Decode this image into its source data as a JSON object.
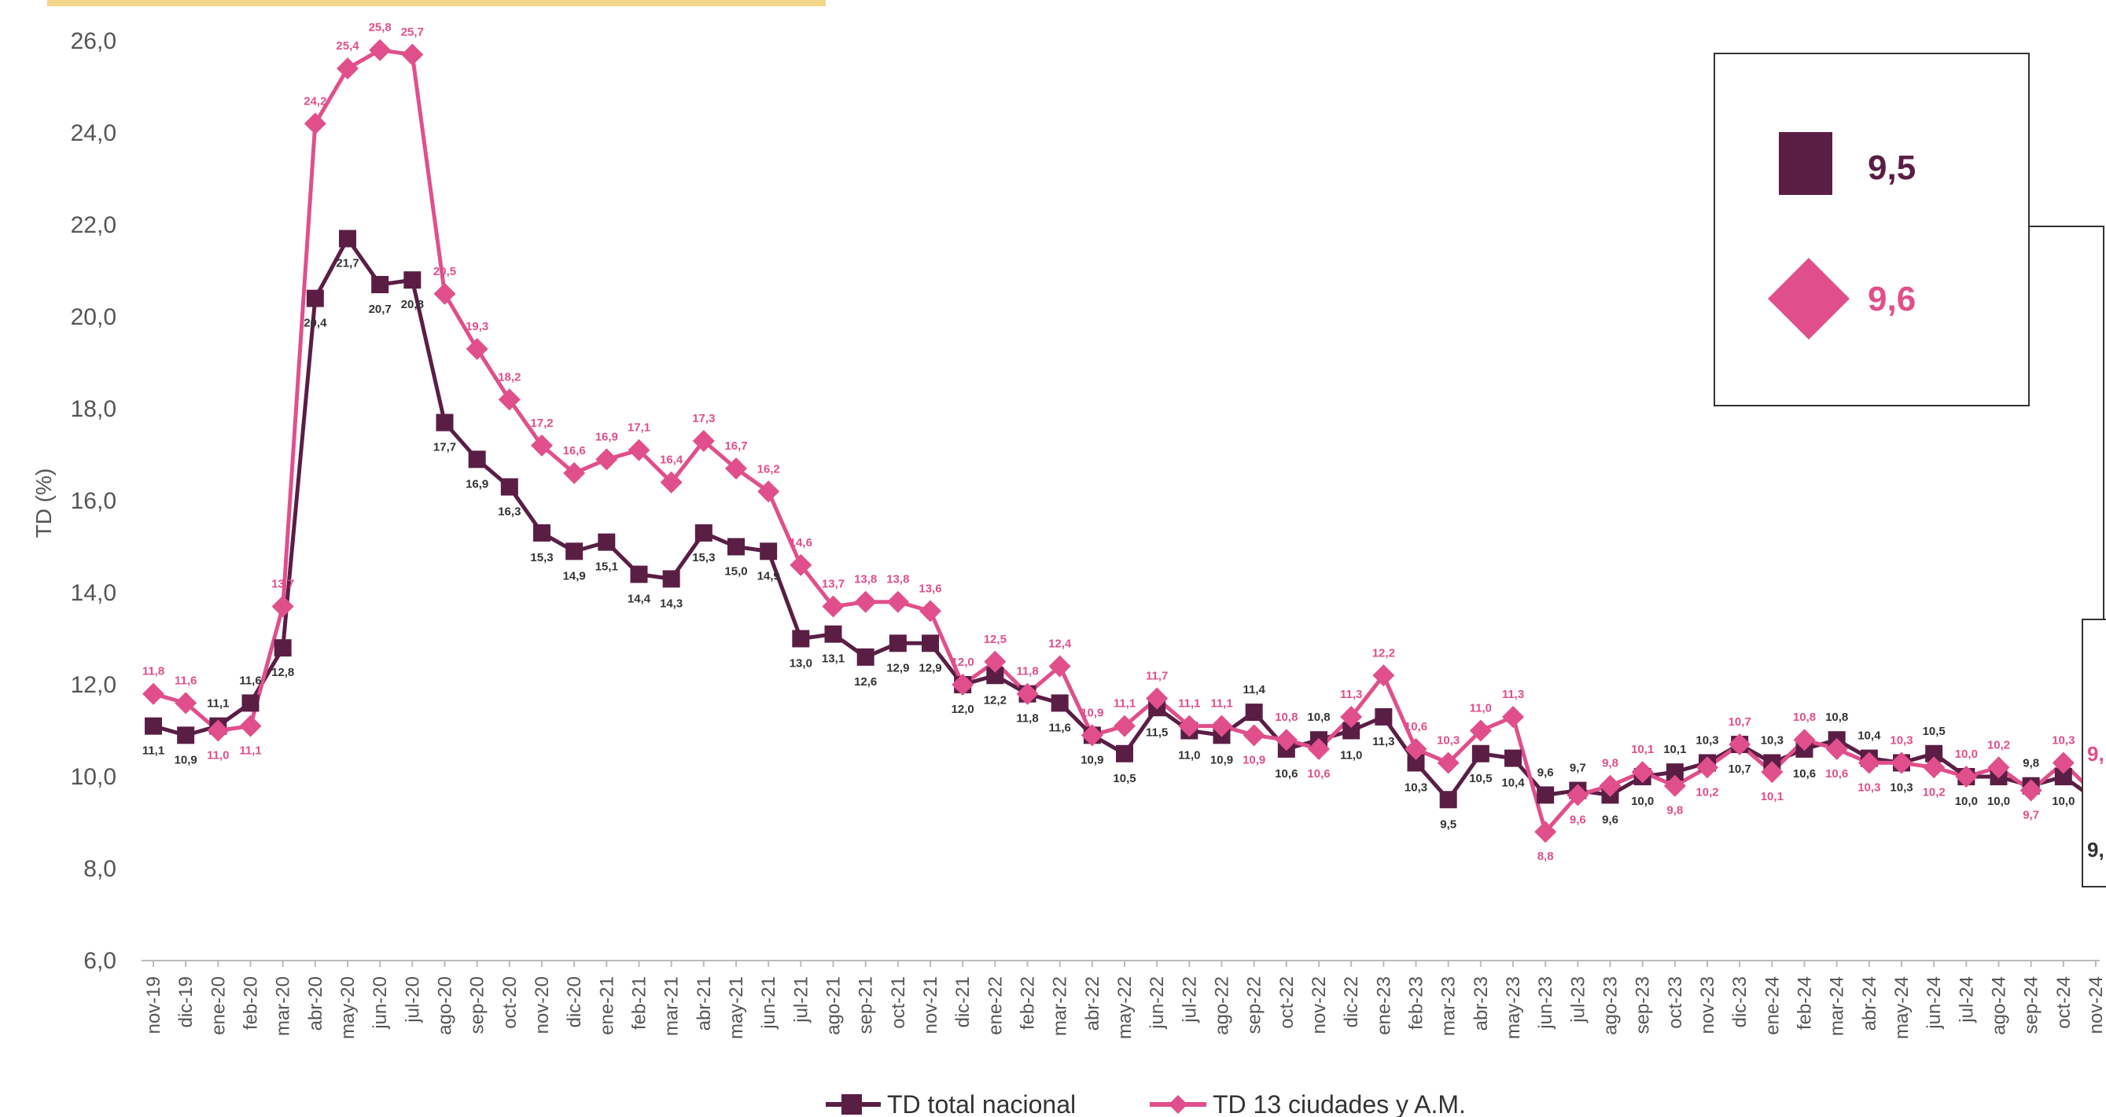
{
  "chart_data": {
    "type": "line",
    "title": "",
    "xlabel": "",
    "ylabel": "TD (%)",
    "ylim": [
      6.0,
      26.0
    ],
    "yticks": [
      "6,0",
      "8,0",
      "10,0",
      "12,0",
      "14,0",
      "16,0",
      "18,0",
      "20,0",
      "22,0",
      "24,0",
      "26,0"
    ],
    "grid": false,
    "legend_position": "bottom",
    "categories": [
      "nov-19",
      "dic-19",
      "ene-20",
      "feb-20",
      "mar-20",
      "abr-20",
      "may-20",
      "jun-20",
      "jul-20",
      "ago-20",
      "sep-20",
      "oct-20",
      "nov-20",
      "dic-20",
      "ene-21",
      "feb-21",
      "mar-21",
      "abr-21",
      "may-21",
      "jun-21",
      "jul-21",
      "ago-21",
      "sep-21",
      "oct-21",
      "nov-21",
      "dic-21",
      "ene-22",
      "feb-22",
      "mar-22",
      "abr-22",
      "may-22",
      "jun-22",
      "jul-22",
      "ago-22",
      "sep-22",
      "oct-22",
      "nov-22",
      "dic-22",
      "ene-23",
      "feb-23",
      "mar-23",
      "abr-23",
      "may-23",
      "jun-23",
      "jul-23",
      "ago-23",
      "sep-23",
      "oct-23",
      "nov-23",
      "dic-23",
      "ene-24",
      "feb-24",
      "mar-24",
      "abr-24",
      "may-24",
      "jun-24",
      "jul-24",
      "ago-24",
      "sep-24",
      "oct-24",
      "nov-24"
    ],
    "series": [
      {
        "name": "TD total nacional",
        "color": "#5a1e45",
        "marker": "square",
        "values": [
          11.1,
          10.9,
          11.1,
          11.6,
          12.8,
          20.4,
          21.7,
          20.7,
          20.8,
          17.7,
          16.9,
          16.3,
          15.3,
          14.9,
          15.1,
          14.4,
          14.3,
          15.3,
          15.0,
          14.9,
          13.0,
          13.1,
          12.6,
          12.9,
          12.9,
          12.0,
          12.2,
          11.8,
          11.6,
          10.9,
          10.5,
          11.5,
          11.0,
          10.9,
          11.4,
          10.6,
          10.8,
          11.0,
          11.3,
          10.3,
          9.5,
          10.5,
          10.4,
          9.6,
          9.7,
          9.6,
          10.0,
          10.1,
          10.3,
          10.7,
          10.3,
          10.6,
          10.8,
          10.4,
          10.3,
          10.5,
          10.0,
          10.0,
          9.8,
          10.0,
          9.5
        ],
        "labels": [
          "11,1",
          "10,9",
          "11,1",
          "11,6",
          "12,8",
          "20,4",
          "21,7",
          "20,7",
          "20,8",
          "17,7",
          "16,9",
          "16,3",
          "15,3",
          "14,9",
          "15,1",
          "14,4",
          "14,3",
          "15,3",
          "15,0",
          "14,9",
          "13,0",
          "13,1",
          "12,6",
          "12,9",
          "12,9",
          "12,0",
          "12,2",
          "11,8",
          "11,6",
          "10,9",
          "10,5",
          "11,5",
          "11,0",
          "10,9",
          "11,4",
          "10,6",
          "10,8",
          "11,0",
          "11,3",
          "10,3",
          "9,5",
          "10,5",
          "10,4",
          "9,6",
          "9,7",
          "9,6",
          "10,0",
          "10,1",
          "10,3",
          "10,7",
          "10,3",
          "10,6",
          "10,8",
          "10,4",
          "10,3",
          "10,5",
          "10,0",
          "10,0",
          "9,8",
          "10,0",
          "9,5"
        ]
      },
      {
        "name": "TD 13 ciudades y A.M.",
        "color": "#e04f8c",
        "marker": "diamond",
        "values": [
          11.8,
          11.6,
          11.0,
          11.1,
          13.7,
          24.2,
          25.4,
          25.8,
          25.7,
          20.5,
          19.3,
          18.2,
          17.2,
          16.6,
          16.9,
          17.1,
          16.4,
          17.3,
          16.7,
          16.2,
          14.6,
          13.7,
          13.8,
          13.8,
          13.6,
          12.0,
          12.5,
          11.8,
          12.4,
          10.9,
          11.1,
          11.7,
          11.1,
          11.1,
          10.9,
          10.8,
          10.6,
          11.3,
          12.2,
          10.6,
          10.3,
          11.0,
          11.3,
          8.8,
          9.6,
          9.8,
          10.1,
          9.8,
          10.2,
          10.7,
          10.1,
          10.8,
          10.6,
          10.3,
          10.3,
          10.2,
          10.0,
          10.2,
          9.7,
          10.3,
          9.6
        ],
        "labels": [
          "11,8",
          "11,6",
          "11,0",
          "11,1",
          "13,7",
          "24,2",
          "25,4",
          "25,8",
          "25,7",
          "20,5",
          "19,3",
          "18,2",
          "17,2",
          "16,6",
          "16,9",
          "17,1",
          "16,4",
          "17,3",
          "16,7",
          "16,2",
          "14,6",
          "13,7",
          "13,8",
          "13,8",
          "13,6",
          "12,0",
          "12,5",
          "11,8",
          "12,4",
          "10,9",
          "11,1",
          "11,7",
          "11,1",
          "11,1",
          "10,9",
          "10,8",
          "10,6",
          "11,3",
          "12,2",
          "10,6",
          "10,3",
          "11,0",
          "11,3",
          "8,8",
          "9,6",
          "9,8",
          "10,1",
          "9,8",
          "10,2",
          "10,7",
          "10,1",
          "10,8",
          "10,6",
          "10,3",
          "10,3",
          "10,2",
          "10,0",
          "10,2",
          "9,7",
          "10,3",
          "9,6"
        ]
      }
    ],
    "highlight_box": {
      "national_value": "9,5",
      "cities_value": "9,6"
    },
    "edge_labels": {
      "national": "9,",
      "cities": "9,"
    }
  }
}
